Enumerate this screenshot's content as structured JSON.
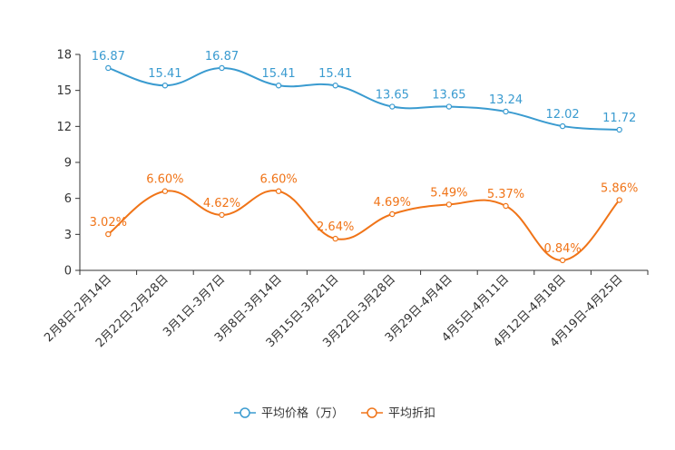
{
  "chart_data": {
    "type": "line",
    "categories": [
      "2月8日-2月14日",
      "2月22日-2月28日",
      "3月1日-3月7日",
      "3月8日-3月14日",
      "3月15日-3月21日",
      "3月22日-3月28日",
      "3月29日-4月4日",
      "4月5日-4月11日",
      "4月12日-4月18日",
      "4月19日-4月25日"
    ],
    "series": [
      {
        "name": "平均价格（万）",
        "color": "#3a9bd0",
        "values": [
          16.87,
          15.41,
          16.87,
          15.41,
          15.41,
          13.65,
          13.65,
          13.24,
          12.02,
          11.72
        ],
        "labels": [
          "16.87",
          "15.41",
          "16.87",
          "15.41",
          "15.41",
          "13.65",
          "13.65",
          "13.24",
          "12.02",
          "11.72"
        ]
      },
      {
        "name": "平均折扣",
        "color": "#f07418",
        "values": [
          3.02,
          6.6,
          4.62,
          6.6,
          2.64,
          4.69,
          5.49,
          5.37,
          0.84,
          5.86
        ],
        "labels": [
          "3.02%",
          "6.60%",
          "4.62%",
          "6.60%",
          "2.64%",
          "4.69%",
          "5.49%",
          "5.37%",
          "0.84%",
          "5.86%"
        ]
      }
    ],
    "yticks": [
      "0",
      "3",
      "6",
      "9",
      "12",
      "15",
      "18"
    ],
    "ylim": [
      0,
      18
    ],
    "title": "",
    "xlabel": "",
    "ylabel": "",
    "legend": "bottom-center",
    "grid": false
  }
}
